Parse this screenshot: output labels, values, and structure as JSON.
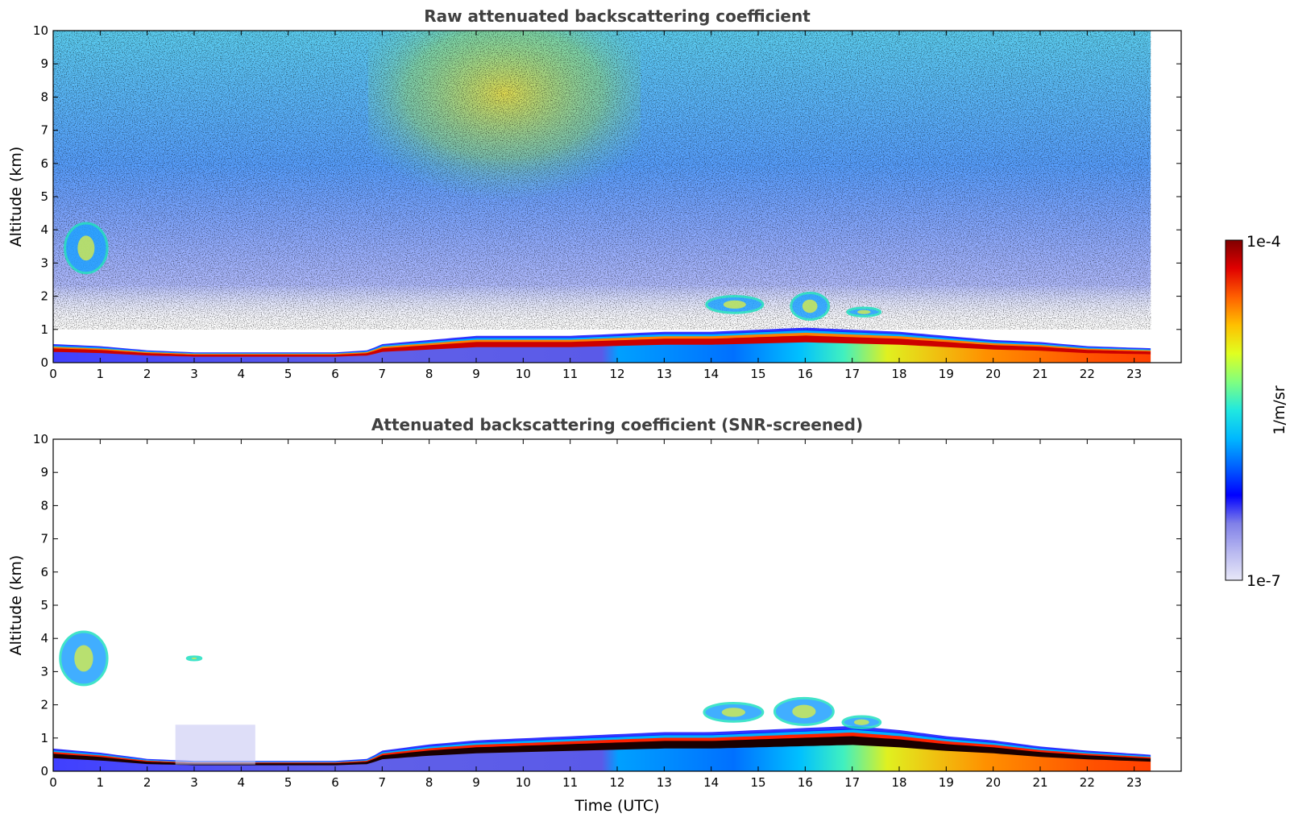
{
  "chart_data": [
    {
      "type": "heatmap",
      "title": "Raw attenuated backscattering coefficient",
      "xlabel": "",
      "ylabel": "Altitude (km)",
      "xlim": [
        0,
        24
      ],
      "ylim": [
        0,
        10
      ],
      "xticks": [
        "0",
        "1",
        "2",
        "3",
        "4",
        "5",
        "6",
        "7",
        "8",
        "9",
        "10",
        "11",
        "12",
        "13",
        "14",
        "15",
        "16",
        "17",
        "18",
        "19",
        "20",
        "21",
        "22",
        "23"
      ],
      "yticks": [
        "0",
        "1",
        "2",
        "3",
        "4",
        "5",
        "6",
        "7",
        "8",
        "9",
        "10"
      ],
      "data_end_hour": 23.35,
      "colormap": "jet",
      "noise_band_km": [
        1.0,
        10.0
      ],
      "boundary_layer_top_km": [
        [
          0,
          0.45
        ],
        [
          1,
          0.4
        ],
        [
          2,
          0.3
        ],
        [
          3,
          0.25
        ],
        [
          4,
          0.25
        ],
        [
          5,
          0.25
        ],
        [
          6,
          0.25
        ],
        [
          6.7,
          0.3
        ],
        [
          7,
          0.45
        ],
        [
          8,
          0.55
        ],
        [
          9,
          0.65
        ],
        [
          10,
          0.65
        ],
        [
          11,
          0.65
        ],
        [
          12,
          0.7
        ],
        [
          13,
          0.75
        ],
        [
          14,
          0.75
        ],
        [
          15,
          0.8
        ],
        [
          16,
          0.85
        ],
        [
          17,
          0.8
        ],
        [
          18,
          0.75
        ],
        [
          19,
          0.65
        ],
        [
          20,
          0.55
        ],
        [
          21,
          0.5
        ],
        [
          22,
          0.4
        ],
        [
          23.35,
          0.35
        ]
      ],
      "features": [
        {
          "kind": "cloud",
          "x": [
            0.25,
            1.15
          ],
          "y": [
            2.7,
            4.2
          ]
        },
        {
          "kind": "cloud",
          "x": [
            13.9,
            15.1
          ],
          "y": [
            1.5,
            2.0
          ]
        },
        {
          "kind": "cloud",
          "x": [
            15.7,
            16.5
          ],
          "y": [
            1.3,
            2.1
          ]
        },
        {
          "kind": "cloud",
          "x": [
            16.9,
            17.6
          ],
          "y": [
            1.4,
            1.65
          ]
        }
      ]
    },
    {
      "type": "heatmap",
      "title": "Attenuated backscattering coefficient (SNR-screened)",
      "xlabel": "Time (UTC)",
      "ylabel": "Altitude (km)",
      "xlim": [
        0,
        24
      ],
      "ylim": [
        0,
        10
      ],
      "xticks": [
        "0",
        "1",
        "2",
        "3",
        "4",
        "5",
        "6",
        "7",
        "8",
        "9",
        "10",
        "11",
        "12",
        "13",
        "14",
        "15",
        "16",
        "17",
        "18",
        "19",
        "20",
        "21",
        "22",
        "23"
      ],
      "yticks": [
        "0",
        "1",
        "2",
        "3",
        "4",
        "5",
        "6",
        "7",
        "8",
        "9",
        "10"
      ],
      "data_end_hour": 23.35,
      "colormap": "jet",
      "boundary_layer_top_km": [
        [
          0,
          0.55
        ],
        [
          1,
          0.45
        ],
        [
          2,
          0.3
        ],
        [
          3,
          0.25
        ],
        [
          4,
          0.25
        ],
        [
          5,
          0.25
        ],
        [
          6,
          0.25
        ],
        [
          6.7,
          0.3
        ],
        [
          7,
          0.5
        ],
        [
          8,
          0.65
        ],
        [
          9,
          0.75
        ],
        [
          10,
          0.8
        ],
        [
          11,
          0.85
        ],
        [
          12,
          0.9
        ],
        [
          13,
          0.95
        ],
        [
          14,
          0.95
        ],
        [
          15,
          1.0
        ],
        [
          16,
          1.05
        ],
        [
          17,
          1.1
        ],
        [
          18,
          1.0
        ],
        [
          19,
          0.85
        ],
        [
          20,
          0.75
        ],
        [
          21,
          0.6
        ],
        [
          22,
          0.5
        ],
        [
          23.35,
          0.4
        ]
      ],
      "features": [
        {
          "kind": "cloud",
          "x": [
            0.15,
            1.15
          ],
          "y": [
            2.6,
            4.2
          ]
        },
        {
          "kind": "cloud",
          "x": [
            2.85,
            3.15
          ],
          "y": [
            3.35,
            3.45
          ]
        },
        {
          "kind": "haze",
          "x": [
            2.6,
            4.3
          ],
          "y": [
            0.2,
            1.4
          ]
        },
        {
          "kind": "cloud",
          "x": [
            13.85,
            15.1
          ],
          "y": [
            1.5,
            2.05
          ]
        },
        {
          "kind": "cloud",
          "x": [
            15.35,
            16.6
          ],
          "y": [
            1.4,
            2.2
          ]
        },
        {
          "kind": "cloud",
          "x": [
            16.8,
            17.6
          ],
          "y": [
            1.3,
            1.65
          ]
        }
      ]
    }
  ],
  "colorbar": {
    "label": "1/m/sr",
    "max_label": "1e-4",
    "min_label": "1e-7",
    "scale": "log",
    "colors": [
      "#e8e8f8",
      "#b8b8f0",
      "#8080e8",
      "#0000ff",
      "#0060ff",
      "#00b8ff",
      "#20e8e0",
      "#80ff80",
      "#e0ff20",
      "#ffc000",
      "#ff6000",
      "#e00000",
      "#800000"
    ]
  }
}
